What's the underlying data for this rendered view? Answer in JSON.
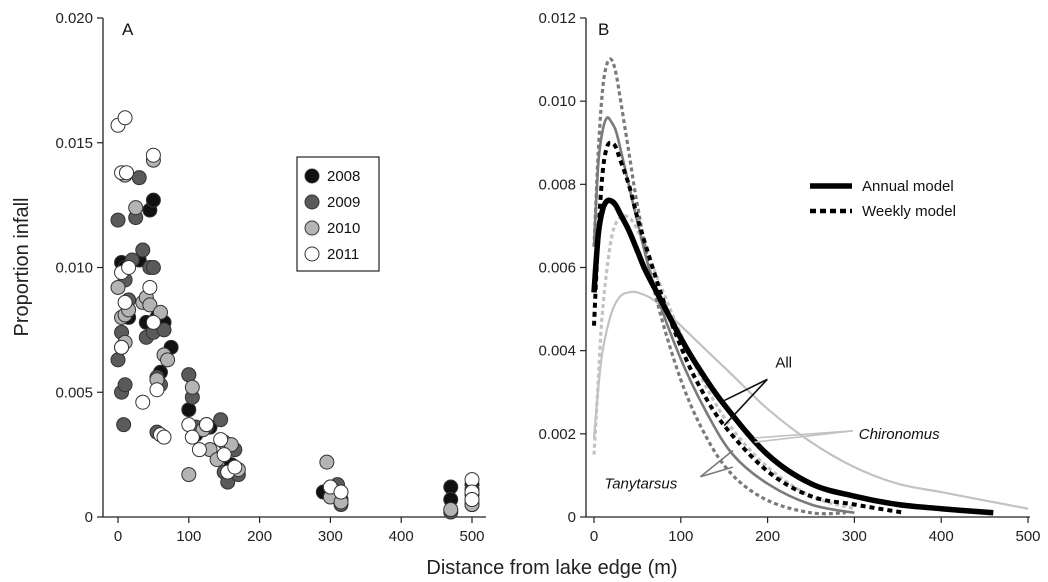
{
  "figure": {
    "xlabel": "Distance from lake edge (m)"
  },
  "chart_data": [
    {
      "panel": "A",
      "type": "scatter",
      "ylabel": "Proportion infall",
      "xlim": [
        -10,
        510
      ],
      "ylim": [
        0,
        0.02
      ],
      "xticks": [
        0,
        100,
        200,
        300,
        400,
        500
      ],
      "xtick_labels": [
        "0",
        "100",
        "200",
        "300",
        "400",
        "500"
      ],
      "yticks": [
        0,
        0.005,
        0.01,
        0.015,
        0.02
      ],
      "ytick_labels": [
        "0",
        "0.005",
        "0.010",
        "0.015",
        "0.020"
      ],
      "legend_position": "upper-middle",
      "series": [
        {
          "name": "2008",
          "color": "#111111",
          "points": [
            [
              5,
              0.0102
            ],
            [
              10,
              0.01
            ],
            [
              15,
              0.008
            ],
            [
              30,
              0.0103
            ],
            [
              40,
              0.0078
            ],
            [
              45,
              0.0123
            ],
            [
              50,
              0.0127
            ],
            [
              55,
              0.008
            ],
            [
              60,
              0.0058
            ],
            [
              65,
              0.0078
            ],
            [
              75,
              0.0068
            ],
            [
              100,
              0.0057
            ],
            [
              100,
              0.0043
            ],
            [
              110,
              0.0033
            ],
            [
              130,
              0.0036
            ],
            [
              150,
              0.0025
            ],
            [
              160,
              0.0021
            ],
            [
              165,
              0.0018
            ],
            [
              290,
              0.001
            ],
            [
              310,
              0.0012
            ],
            [
              315,
              0.0007
            ],
            [
              470,
              0.0012
            ],
            [
              470,
              0.0007
            ],
            [
              500,
              0.0013
            ],
            [
              500,
              0.0007
            ],
            [
              500,
              0.0005
            ]
          ]
        },
        {
          "name": "2009",
          "color": "#5a5a5a",
          "points": [
            [
              0,
              0.0119
            ],
            [
              0,
              0.0063
            ],
            [
              5,
              0.005
            ],
            [
              5,
              0.0074
            ],
            [
              8,
              0.0037
            ],
            [
              10,
              0.0053
            ],
            [
              10,
              0.0095
            ],
            [
              15,
              0.0087
            ],
            [
              20,
              0.0103
            ],
            [
              25,
              0.012
            ],
            [
              30,
              0.0136
            ],
            [
              35,
              0.0107
            ],
            [
              40,
              0.0072
            ],
            [
              45,
              0.01
            ],
            [
              50,
              0.01
            ],
            [
              50,
              0.0074
            ],
            [
              55,
              0.0056
            ],
            [
              55,
              0.0034
            ],
            [
              60,
              0.0053
            ],
            [
              65,
              0.0075
            ],
            [
              100,
              0.0057
            ],
            [
              105,
              0.0048
            ],
            [
              110,
              0.0036
            ],
            [
              125,
              0.0036
            ],
            [
              145,
              0.0039
            ],
            [
              150,
              0.0018
            ],
            [
              155,
              0.0014
            ],
            [
              165,
              0.0027
            ],
            [
              170,
              0.0017
            ],
            [
              300,
              0.0012
            ],
            [
              310,
              0.0013
            ],
            [
              315,
              0.0005
            ],
            [
              470,
              0.0002
            ],
            [
              500,
              0.0011
            ],
            [
              500,
              0.0005
            ]
          ]
        },
        {
          "name": "2010",
          "color": "#b4b4b4",
          "points": [
            [
              0,
              0.0092
            ],
            [
              5,
              0.0068
            ],
            [
              5,
              0.008
            ],
            [
              10,
              0.0081
            ],
            [
              10,
              0.007
            ],
            [
              10,
              0.0137
            ],
            [
              15,
              0.0083
            ],
            [
              25,
              0.0124
            ],
            [
              35,
              0.0086
            ],
            [
              40,
              0.0088
            ],
            [
              45,
              0.0085
            ],
            [
              50,
              0.0143
            ],
            [
              55,
              0.0055
            ],
            [
              60,
              0.0082
            ],
            [
              65,
              0.0065
            ],
            [
              70,
              0.0063
            ],
            [
              100,
              0.0017
            ],
            [
              105,
              0.0052
            ],
            [
              120,
              0.0035
            ],
            [
              125,
              0.0037
            ],
            [
              130,
              0.0027
            ],
            [
              140,
              0.0023
            ],
            [
              150,
              0.003
            ],
            [
              160,
              0.0029
            ],
            [
              170,
              0.0019
            ],
            [
              295,
              0.0022
            ],
            [
              300,
              0.0008
            ],
            [
              315,
              0.0006
            ],
            [
              470,
              0.0003
            ],
            [
              500,
              0.0009
            ],
            [
              500,
              0.0005
            ]
          ]
        },
        {
          "name": "2011",
          "color": "#ffffff",
          "points": [
            [
              0,
              0.0157
            ],
            [
              5,
              0.0138
            ],
            [
              5,
              0.0098
            ],
            [
              5,
              0.0068
            ],
            [
              10,
              0.016
            ],
            [
              10,
              0.0086
            ],
            [
              12,
              0.0138
            ],
            [
              15,
              0.01
            ],
            [
              35,
              0.0046
            ],
            [
              45,
              0.0092
            ],
            [
              50,
              0.0145
            ],
            [
              50,
              0.0078
            ],
            [
              55,
              0.0051
            ],
            [
              60,
              0.0033
            ],
            [
              65,
              0.0032
            ],
            [
              100,
              0.0037
            ],
            [
              105,
              0.0032
            ],
            [
              115,
              0.0027
            ],
            [
              125,
              0.0037
            ],
            [
              145,
              0.0031
            ],
            [
              150,
              0.0025
            ],
            [
              155,
              0.0018
            ],
            [
              165,
              0.002
            ],
            [
              300,
              0.0012
            ],
            [
              315,
              0.001
            ],
            [
              500,
              0.0015
            ],
            [
              500,
              0.001
            ],
            [
              500,
              0.0007
            ]
          ]
        }
      ]
    },
    {
      "panel": "B",
      "type": "line",
      "xlim": [
        -10,
        505
      ],
      "ylim": [
        0,
        0.012
      ],
      "xticks": [
        0,
        100,
        200,
        300,
        400,
        500
      ],
      "xtick_labels": [
        "0",
        "100",
        "200",
        "300",
        "400",
        "500"
      ],
      "yticks": [
        0,
        0.002,
        0.004,
        0.006,
        0.008,
        0.01,
        0.012
      ],
      "ytick_labels": [
        "0",
        "0.002",
        "0.004",
        "0.006",
        "0.008",
        "0.010",
        "0.012"
      ],
      "legend_position": "upper-right",
      "legend": [
        {
          "name": "Annual model",
          "style": "solid"
        },
        {
          "name": "Weekly model",
          "style": "dotted"
        }
      ],
      "annotations": [
        {
          "text": "All",
          "italic": false,
          "anchor": [
            202,
            0.0036
          ],
          "targets": [
            [
              150,
              0.0022
            ],
            [
              150,
              0.0028
            ]
          ]
        },
        {
          "text": "Chironomus",
          "italic": true,
          "anchor": [
            305,
            0.002
          ],
          "targets": [
            [
              185,
              0.0018
            ],
            [
              185,
              0.0019
            ]
          ]
        },
        {
          "text": "Tanytarsus",
          "italic": true,
          "anchor": [
            12,
            0.0008
          ],
          "targets": [
            [
              160,
              0.0016
            ],
            [
              160,
              0.0012
            ]
          ]
        }
      ],
      "series": [
        {
          "group": "All",
          "model": "Annual model",
          "style": "solid",
          "color": "#000000",
          "width": 5.5,
          "x": [
            0,
            5,
            10,
            15,
            20,
            25,
            30,
            40,
            50,
            60,
            80,
            100,
            120,
            150,
            200,
            250,
            300,
            350,
            400,
            460
          ],
          "y": [
            0.0054,
            0.0068,
            0.0074,
            0.0076,
            0.0076,
            0.0075,
            0.0073,
            0.0069,
            0.0064,
            0.0059,
            0.0051,
            0.0043,
            0.0036,
            0.0027,
            0.0015,
            0.0008,
            0.0005,
            0.0003,
            0.0002,
            0.0001
          ]
        },
        {
          "group": "All",
          "model": "Weekly model",
          "style": "dotted",
          "color": "#000000",
          "width": 4,
          "x": [
            0,
            5,
            10,
            15,
            20,
            25,
            30,
            40,
            50,
            60,
            80,
            100,
            120,
            150,
            200,
            250,
            300,
            358
          ],
          "y": [
            0.0046,
            0.0068,
            0.0083,
            0.0089,
            0.009,
            0.0089,
            0.0086,
            0.008,
            0.0072,
            0.0065,
            0.0052,
            0.0041,
            0.0032,
            0.0022,
            0.0011,
            0.0005,
            0.0003,
            0.0001
          ]
        },
        {
          "group": "Chironomus",
          "model": "Annual model",
          "style": "solid",
          "color": "#c2c2c2",
          "width": 2.2,
          "x": [
            0,
            5,
            10,
            20,
            30,
            40,
            50,
            70,
            100,
            130,
            160,
            200,
            250,
            300,
            350,
            400,
            450,
            500
          ],
          "y": [
            0.0019,
            0.0031,
            0.004,
            0.0049,
            0.0053,
            0.0054,
            0.0054,
            0.0052,
            0.0046,
            0.004,
            0.0034,
            0.0026,
            0.0018,
            0.0012,
            0.0008,
            0.0006,
            0.0004,
            0.0002
          ]
        },
        {
          "group": "Chironomus",
          "model": "Weekly model",
          "style": "dotted",
          "color": "#c2c2c2",
          "width": 3.2,
          "x": [
            0,
            5,
            10,
            20,
            30,
            40,
            50,
            70,
            100,
            130,
            160,
            200,
            250,
            300
          ],
          "y": [
            0.0015,
            0.0033,
            0.005,
            0.0067,
            0.0072,
            0.0072,
            0.0069,
            0.0059,
            0.0044,
            0.0031,
            0.0021,
            0.0012,
            0.0005,
            0.0002
          ]
        },
        {
          "group": "Tanytarsus",
          "model": "Annual model",
          "style": "solid",
          "color": "#7a7a7a",
          "width": 2.6,
          "x": [
            0,
            5,
            10,
            15,
            20,
            25,
            30,
            40,
            50,
            70,
            100,
            130,
            160,
            200,
            250,
            300
          ],
          "y": [
            0.0065,
            0.0085,
            0.0093,
            0.0096,
            0.0095,
            0.0093,
            0.0089,
            0.008,
            0.0071,
            0.0055,
            0.0038,
            0.0025,
            0.0015,
            0.0008,
            0.0003,
            0.0001
          ]
        },
        {
          "group": "Tanytarsus",
          "model": "Weekly model",
          "style": "dotted",
          "color": "#7a7a7a",
          "width": 3.2,
          "x": [
            0,
            5,
            10,
            15,
            20,
            25,
            30,
            40,
            50,
            70,
            100,
            130,
            160,
            200,
            250,
            290
          ],
          "y": [
            0.0065,
            0.0088,
            0.0103,
            0.0109,
            0.011,
            0.0107,
            0.0101,
            0.0088,
            0.0075,
            0.0054,
            0.0033,
            0.0019,
            0.001,
            0.0004,
            0.0001,
            0.0001
          ]
        }
      ]
    }
  ]
}
